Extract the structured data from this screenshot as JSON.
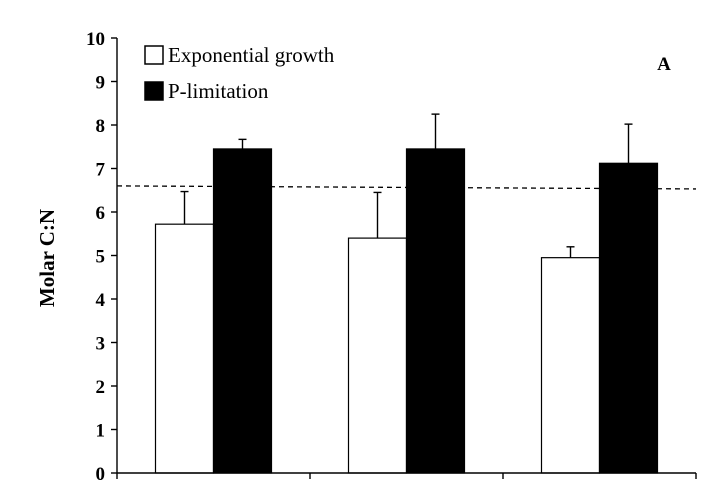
{
  "chart_data": {
    "type": "bar",
    "title": "",
    "panel_label": "A",
    "xlabel": "",
    "ylabel": "Molar C:N",
    "ylim": [
      0,
      10
    ],
    "yticks": [
      0,
      1,
      2,
      3,
      4,
      5,
      6,
      7,
      8,
      9,
      10
    ],
    "grid": false,
    "legend_position": "top-left",
    "categories": [
      "",
      "",
      ""
    ],
    "series": [
      {
        "name": "Exponential growth",
        "color": "#ffffff",
        "values": [
          5.72,
          5.4,
          4.95
        ],
        "errors": [
          0.75,
          1.05,
          0.25
        ]
      },
      {
        "name": "P-limitation",
        "color": "#000000",
        "values": [
          7.45,
          7.45,
          7.12
        ],
        "errors": [
          0.22,
          0.8,
          0.9
        ]
      }
    ],
    "reference_line": {
      "style": "dashed",
      "y_start": 6.6,
      "y_end": 6.53
    }
  }
}
